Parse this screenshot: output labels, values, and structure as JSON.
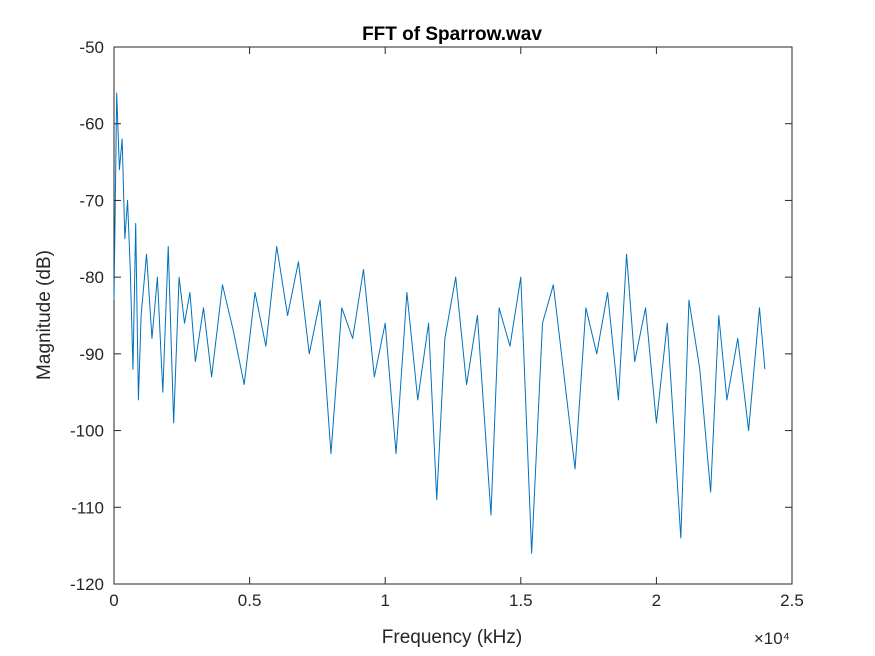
{
  "chart_data": {
    "type": "line",
    "title": "FFT of Sparrow.wav",
    "xlabel": "Frequency (kHz)",
    "ylabel": "Magnitude (dB)",
    "xlim": [
      0,
      25000
    ],
    "ylim": [
      -120,
      -50
    ],
    "x_ticks": [
      0,
      5000,
      10000,
      15000,
      20000,
      25000
    ],
    "x_tick_labels": [
      "0",
      "0.5",
      "1",
      "1.5",
      "2",
      "2.5"
    ],
    "x_exponent_label": "×10⁴",
    "y_ticks": [
      -120,
      -110,
      -100,
      -90,
      -80,
      -70,
      -60,
      -50
    ],
    "y_tick_labels": [
      "-120",
      "-110",
      "-100",
      "-90",
      "-80",
      "-70",
      "-60",
      "-50"
    ],
    "grid": false,
    "series": [
      {
        "color": "#0072BD",
        "x": [
          0,
          100,
          200,
          300,
          400,
          500,
          600,
          700,
          800,
          900,
          1000,
          1200,
          1400,
          1600,
          1800,
          2000,
          2200,
          2400,
          2600,
          2800,
          3000,
          3300,
          3600,
          4000,
          4400,
          4800,
          5200,
          5600,
          6000,
          6400,
          6800,
          7200,
          7600,
          8000,
          8400,
          8800,
          9200,
          9600,
          10000,
          10400,
          10800,
          11200,
          11600,
          11900,
          12200,
          12600,
          13000,
          13400,
          13900,
          14200,
          14600,
          15000,
          15400,
          15800,
          16200,
          16600,
          17000,
          17400,
          17800,
          18200,
          18600,
          18900,
          19200,
          19600,
          20000,
          20400,
          20900,
          21200,
          21600,
          22000,
          22300,
          22600,
          23000,
          23400,
          23800,
          24000
        ],
        "y": [
          -83,
          -56,
          -66,
          -62,
          -75,
          -70,
          -79,
          -92,
          -73,
          -96,
          -85,
          -77,
          -88,
          -80,
          -95,
          -76,
          -99,
          -80,
          -86,
          -82,
          -91,
          -84,
          -93,
          -81,
          -87,
          -94,
          -82,
          -89,
          -76,
          -85,
          -78,
          -90,
          -83,
          -103,
          -84,
          -88,
          -79,
          -93,
          -86,
          -103,
          -82,
          -96,
          -86,
          -109,
          -88,
          -80,
          -94,
          -85,
          -111,
          -84,
          -89,
          -80,
          -116,
          -86,
          -81,
          -93,
          -105,
          -84,
          -90,
          -82,
          -96,
          -77,
          -91,
          -84,
          -99,
          -86,
          -114,
          -83,
          -92,
          -108,
          -85,
          -96,
          -88,
          -100,
          -84,
          -92
        ]
      }
    ]
  }
}
